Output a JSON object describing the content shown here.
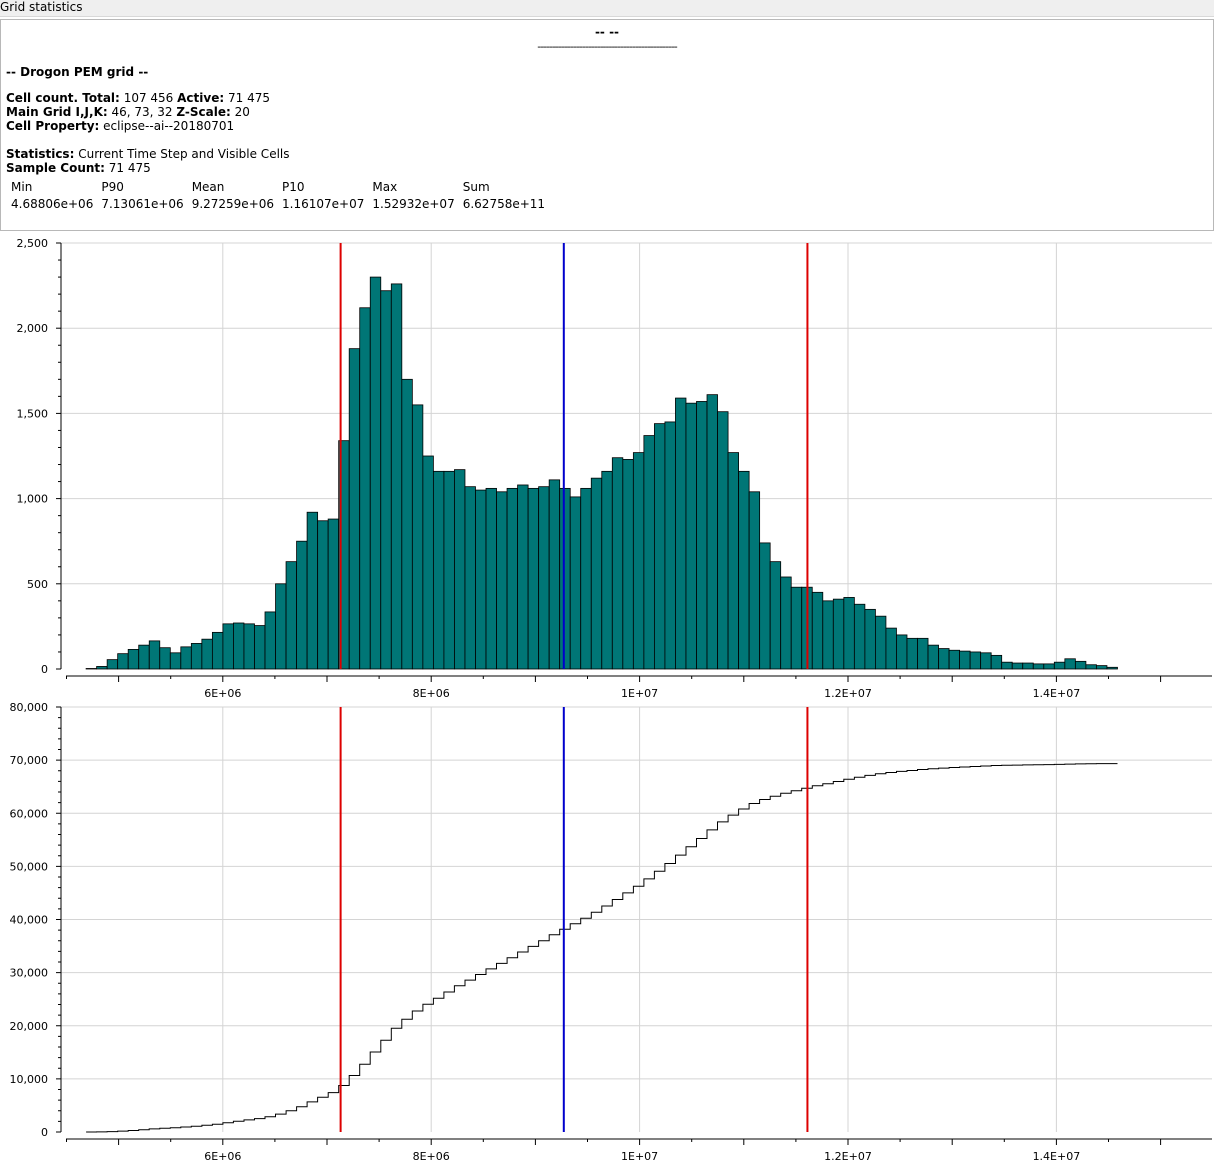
{
  "window": {
    "title": "Grid statistics"
  },
  "info": {
    "header": "-- --",
    "separator": "-----------------------------------------------",
    "grid_title": "-- Drogon PEM grid --",
    "cell_count_label": "Cell count. Total:",
    "cell_count_total": "107 456",
    "active_label": "Active:",
    "active_value": "71 475",
    "main_grid_label": "Main Grid I,J,K:",
    "main_grid_value": "46, 73, 32",
    "zscale_label": "Z-Scale:",
    "zscale_value": "20",
    "cell_property_label": "Cell Property:",
    "cell_property_value": "eclipse--ai--20180701",
    "statistics_label": "Statistics:",
    "statistics_value": "Current Time Step and Visible Cells",
    "sample_count_label": "Sample Count:",
    "sample_count_value": "71 475",
    "table_headers": [
      "Min",
      "P90",
      "Mean",
      "P10",
      "Max",
      "Sum"
    ],
    "table_values": [
      "4.68806e+06",
      "7.13061e+06",
      "9.27259e+06",
      "1.16107e+07",
      "1.52932e+07",
      "6.62758e+11"
    ]
  },
  "chart_data": [
    {
      "type": "bar",
      "name": "histogram",
      "xlim": [
        4200000,
        15500000
      ],
      "ylim": [
        0,
        2500
      ],
      "x_ticks": [
        "6E+06",
        "8E+06",
        "1E+07",
        "1.2E+07",
        "1.4E+07"
      ],
      "y_ticks": [
        "0",
        "500",
        "1,000",
        "1,500",
        "2,000",
        "2,500"
      ],
      "bin_start": 4688060,
      "bin_width": 101000,
      "values": [
        3,
        15,
        55,
        90,
        115,
        140,
        165,
        125,
        95,
        130,
        150,
        175,
        215,
        265,
        270,
        265,
        255,
        335,
        500,
        630,
        750,
        920,
        870,
        880,
        1340,
        1880,
        2120,
        2300,
        2220,
        2260,
        1700,
        1550,
        1250,
        1160,
        1160,
        1170,
        1070,
        1050,
        1060,
        1040,
        1060,
        1080,
        1060,
        1070,
        1110,
        1060,
        1010,
        1060,
        1120,
        1160,
        1240,
        1230,
        1270,
        1370,
        1440,
        1450,
        1590,
        1560,
        1570,
        1610,
        1510,
        1270,
        1160,
        1040,
        740,
        630,
        540,
        480,
        480,
        450,
        400,
        410,
        420,
        380,
        350,
        310,
        240,
        200,
        180,
        180,
        140,
        120,
        110,
        105,
        100,
        95,
        80,
        40,
        35,
        35,
        30,
        30,
        40,
        60,
        45,
        25,
        20,
        10
      ],
      "hist_color": "#007676",
      "vlines": [
        {
          "x": 7130610,
          "color": "#dd0000"
        },
        {
          "x": 9272590,
          "color": "#0000cc"
        },
        {
          "x": 11610700,
          "color": "#dd0000"
        }
      ]
    },
    {
      "type": "line",
      "name": "cumulative",
      "step": true,
      "xlim": [
        4200000,
        15500000
      ],
      "ylim": [
        0,
        80000
      ],
      "x_ticks": [
        "6E+06",
        "8E+06",
        "1E+07",
        "1.2E+07",
        "1.4E+07"
      ],
      "y_ticks": [
        "0",
        "10,000",
        "20,000",
        "30,000",
        "40,000",
        "50,000",
        "60,000",
        "70,000",
        "80,000"
      ],
      "line_color": "#000000",
      "vlines": [
        {
          "x": 7130610,
          "color": "#dd0000"
        },
        {
          "x": 9272590,
          "color": "#0000cc"
        },
        {
          "x": 11610700,
          "color": "#dd0000"
        }
      ]
    }
  ]
}
